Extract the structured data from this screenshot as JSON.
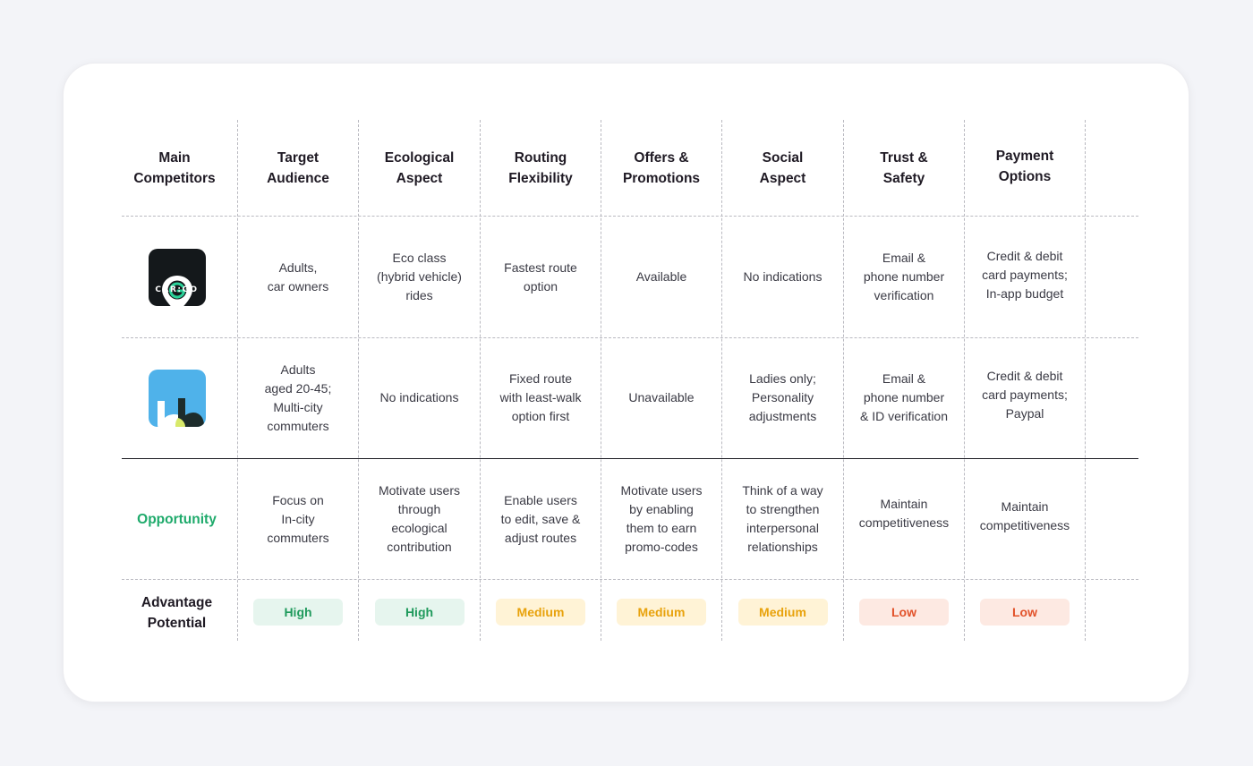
{
  "colors": {
    "opportunity": "#1eaa6b",
    "high_bg": "#e6f5ee",
    "high_fg": "#1f9a5c",
    "medium_bg": "#fff3d6",
    "medium_fg": "#e8a20c",
    "low_bg": "#fde9e2",
    "low_fg": "#e2522a"
  },
  "headers": [
    "Main\nCompetitors",
    "Target\nAudience",
    "Ecological\nAspect",
    "Routing\nFlexibility",
    "Offers &\nPromotions",
    "Social\nAspect",
    "Trust &\nSafety",
    "Payment\nOptions"
  ],
  "competitors": [
    {
      "logo_icon": "cargo-logo-icon",
      "logo_text": "CAR:GO",
      "cells": [
        "Adults,\ncar owners",
        "Eco class\n(hybrid vehicle)\nrides",
        "Fastest route\noption",
        "Available",
        "No indications",
        "Email &\nphone number\nverification",
        "Credit & debit\ncard payments;\nIn-app budget"
      ]
    },
    {
      "logo_icon": "bb-logo-icon",
      "cells": [
        "Adults\naged 20-45;\nMulti-city\ncommuters",
        "No indications",
        "Fixed route\nwith least-walk\noption first",
        "Unavailable",
        "Ladies only;\nPersonality\nadjustments",
        "Email &\nphone number\n& ID verification",
        "Credit & debit\ncard payments;\nPaypal"
      ]
    }
  ],
  "opportunity": {
    "label": "Opportunity",
    "cells": [
      "Focus on\nIn-city\ncommuters",
      "Motivate users\nthrough\necological\ncontribution",
      "Enable users\nto edit, save &\nadjust routes",
      "Motivate users\nby enabling\nthem to earn\npromo-codes",
      "Think of a way\nto strengthen\ninterpersonal\nrelationships",
      "Maintain\ncompetitiveness",
      "Maintain\ncompetitiveness"
    ]
  },
  "advantage": {
    "label": "Advantage\nPotential",
    "levels": [
      {
        "text": "High",
        "level": "high"
      },
      {
        "text": "High",
        "level": "high"
      },
      {
        "text": "Medium",
        "level": "medium"
      },
      {
        "text": "Medium",
        "level": "medium"
      },
      {
        "text": "Medium",
        "level": "medium"
      },
      {
        "text": "Low",
        "level": "low"
      },
      {
        "text": "Low",
        "level": "low"
      }
    ]
  }
}
